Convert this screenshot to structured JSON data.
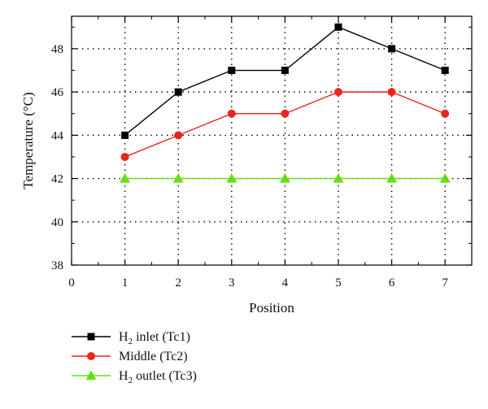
{
  "chart_data": {
    "type": "line",
    "title": "",
    "xlabel": "Position",
    "ylabel": "Temperature (°C)",
    "xlim": [
      0,
      7.5
    ],
    "ylim": [
      38,
      49.5
    ],
    "xticks": [
      0,
      1,
      2,
      3,
      4,
      5,
      6,
      7
    ],
    "yticks": [
      38,
      40,
      42,
      44,
      46,
      48
    ],
    "grid": true,
    "legend_position": "bottom-left",
    "x": [
      1,
      2,
      3,
      4,
      5,
      6,
      7
    ],
    "series": [
      {
        "name": "H2 inlet (Tc1)",
        "label_main": "H",
        "label_sub": "2",
        "label_rest": " inlet (Tc1)",
        "marker": "square",
        "color": "#000000",
        "values": [
          44,
          46,
          47,
          47,
          49,
          48,
          47
        ]
      },
      {
        "name": "Middle (Tc2)",
        "label_main": "Middle (Tc2)",
        "label_sub": "",
        "label_rest": "",
        "marker": "circle",
        "color": "#e8261c",
        "values": [
          43,
          44,
          45,
          45,
          46,
          46,
          45
        ]
      },
      {
        "name": "H2 outlet (Tc3)",
        "label_main": "H",
        "label_sub": "2",
        "label_rest": " outlet (Tc3)",
        "marker": "triangle",
        "color": "#66dd11",
        "values": [
          42,
          42,
          42,
          42,
          42,
          42,
          42
        ]
      }
    ]
  }
}
